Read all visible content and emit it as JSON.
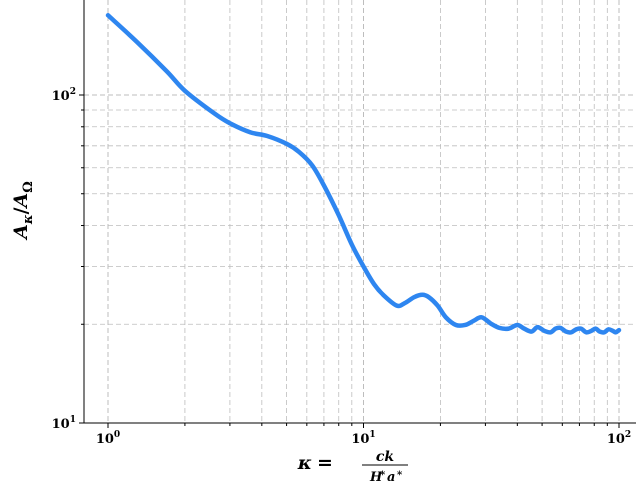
{
  "chart_data": {
    "type": "line",
    "title": "",
    "xlabel": "κ = ck / (H*a*)",
    "xlabel_parts": {
      "lhs": "κ",
      "eq": "=",
      "numerator": "ck",
      "denominator_H": "H",
      "denominator_a": "a"
    },
    "ylabel": "Aκ/AΩ",
    "ylabel_parts": {
      "A1": "A",
      "sub1": "κ",
      "slash": "/",
      "A2": "A",
      "sub2": "Ω"
    },
    "xscale": "log",
    "yscale": "log",
    "xlim": [
      0.85,
      110
    ],
    "ylim": [
      10,
      250
    ],
    "grid": true,
    "line_color": "#2e86f0",
    "x_ticks": [
      {
        "value": 1,
        "base": "10",
        "exp": "0"
      },
      {
        "value": 10,
        "base": "10",
        "exp": "1"
      },
      {
        "value": 100,
        "base": "10",
        "exp": "2"
      }
    ],
    "y_ticks": [
      {
        "value": 10,
        "base": "10",
        "exp": "1"
      },
      {
        "value": 100,
        "base": "10",
        "exp": "2"
      }
    ],
    "series": [
      {
        "x": [
          1.0,
          1.3,
          1.7,
          2.0,
          2.6,
          3.0,
          3.6,
          4.2,
          5.0,
          5.6,
          6.3,
          7.0,
          8.0,
          9.0,
          10.0,
          11.0,
          12.0,
          13.5,
          14.5,
          15.8,
          17.0,
          18.0,
          19.5,
          21.0,
          23.0,
          25.0,
          27.0,
          29.0,
          31.5,
          34.0,
          37.0,
          40.0,
          42.5,
          45.5,
          48.0,
          51.0,
          54.0,
          56.5,
          59.0,
          62.0,
          65.0,
          68.0,
          71.0,
          74.5,
          78.0,
          81.0,
          84.0,
          87.5,
          91.0,
          94.5,
          97.0,
          100.0
        ],
        "y": [
          175,
          145,
          118,
          103,
          88,
          82,
          77,
          75,
          71,
          67,
          61,
          53,
          43,
          35,
          30,
          26.5,
          24.5,
          22.8,
          23.2,
          24.2,
          24.6,
          24.2,
          22.8,
          21.0,
          19.9,
          19.9,
          20.5,
          21.0,
          20.1,
          19.5,
          19.4,
          19.9,
          19.4,
          19.0,
          19.6,
          19.1,
          18.9,
          19.4,
          19.5,
          19.0,
          18.9,
          19.3,
          19.4,
          18.9,
          19.1,
          19.4,
          19.0,
          18.9,
          19.3,
          19.1,
          18.9,
          19.2
        ]
      }
    ]
  }
}
